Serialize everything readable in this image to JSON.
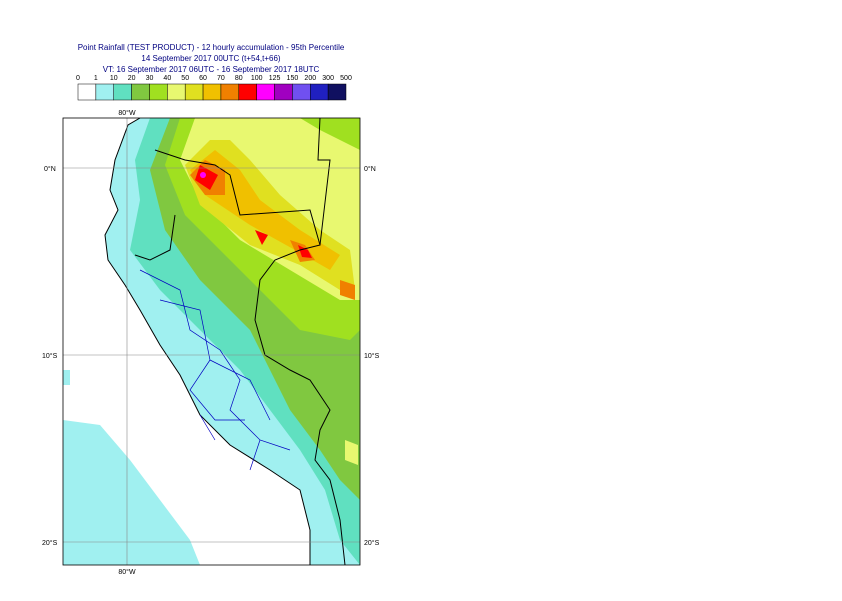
{
  "header": {
    "title": "Point Rainfall (TEST PRODUCT) - 12 hourly accumulation - 95th Percentile",
    "base_time": "14 September 2017 00UTC (t+54,t+66)",
    "valid_time": "VT: 16 September 2017 06UTC - 16 September 2017 18UTC"
  },
  "legend": {
    "labels": [
      0,
      1,
      10,
      20,
      30,
      40,
      50,
      60,
      70,
      80,
      100,
      125,
      150,
      200,
      300,
      500
    ],
    "colors": [
      "#ffffff",
      "#a0f0f0",
      "#60e0c0",
      "#80c840",
      "#a0e020",
      "#e8f870",
      "#e0e020",
      "#f0c000",
      "#f08000",
      "#ff0000",
      "#ff00ff",
      "#a000c0",
      "#7050f0",
      "#2020c0",
      "#101060"
    ]
  },
  "map": {
    "lon_label": "80°W",
    "lat_labels": [
      "0°N",
      "10°S",
      "20°S"
    ]
  }
}
